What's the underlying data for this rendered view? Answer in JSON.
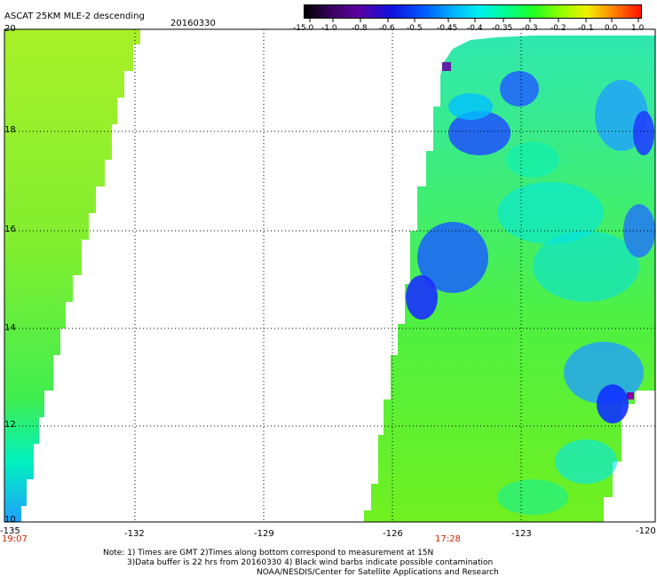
{
  "header": {
    "title": "ASCAT 25KM MLE-2 descending",
    "date": "20160330"
  },
  "colorbar": {
    "labels": [
      "-15.0",
      "-1.0",
      "-0.8",
      "-0.6",
      "-0.5",
      "-0.45",
      "-0.4",
      "-0.35",
      "-0.3",
      "-0.2",
      "-0.1",
      "0.0",
      "1.0"
    ],
    "colors": [
      "#000000",
      "#5a0090",
      "#1000e0",
      "#0050ff",
      "#0098ff",
      "#00e0ff",
      "#00ffb0",
      "#00ff40",
      "#40ff00",
      "#b0ff00",
      "#ffff00",
      "#ff9000",
      "#ff2000"
    ]
  },
  "axes": {
    "lat_labels": [
      "20",
      "18",
      "16",
      "14",
      "12",
      "10"
    ],
    "lon_labels": [
      "-135",
      "-132",
      "-129",
      "-126",
      "-123",
      "-120"
    ],
    "time_labels": [
      "19:07",
      "17:28"
    ]
  },
  "notes": {
    "line1": "Note: 1) Times are GMT 2)Times along bottom correspond to measurement at 15N",
    "line2": "3)Data buffer is 22 hrs from 20160330 4) Black wind barbs indicate possible contamination",
    "line3": "NOAA/NESDIS/Center for Satellite Applications and Research"
  }
}
